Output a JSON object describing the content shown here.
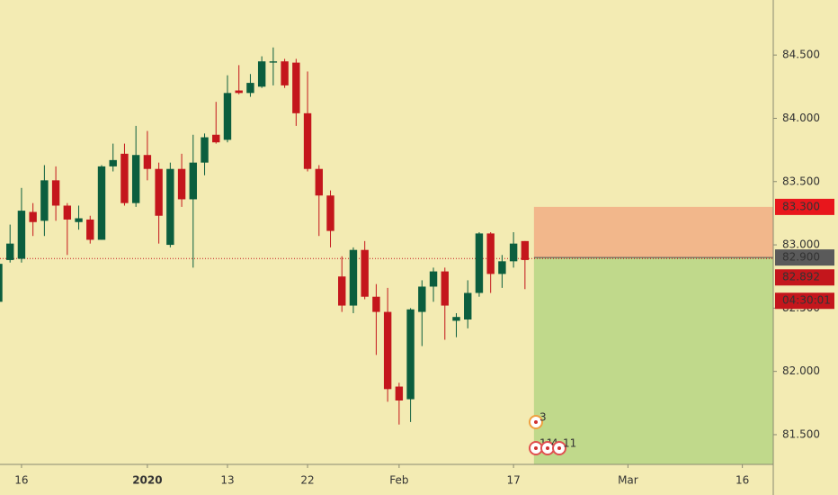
{
  "chart_data": {
    "type": "candlestick",
    "x": [
      0,
      1,
      2,
      3,
      4,
      5,
      6,
      7,
      8,
      9,
      10,
      11,
      12,
      13,
      14,
      15,
      16,
      17,
      18,
      19,
      20,
      21,
      22,
      23,
      24,
      25,
      26,
      27,
      28,
      29,
      30,
      31,
      32,
      33,
      34,
      35,
      36,
      37,
      38,
      39,
      40,
      41,
      42,
      43,
      44,
      45,
      46
    ],
    "open": [
      82.55,
      82.88,
      82.89,
      83.26,
      83.19,
      83.51,
      83.31,
      83.18,
      83.2,
      83.04,
      83.62,
      83.72,
      83.33,
      83.71,
      83.6,
      83.0,
      83.6,
      83.36,
      83.65,
      83.87,
      83.83,
      84.22,
      84.2,
      84.25,
      84.44,
      84.45,
      84.44,
      84.04,
      83.6,
      83.39,
      82.75,
      82.52,
      82.96,
      82.59,
      82.47,
      81.88,
      81.78,
      82.47,
      82.67,
      82.79,
      82.4,
      82.41,
      82.62,
      83.09,
      82.77,
      82.87,
      83.03
    ],
    "high": [
      82.9,
      83.16,
      83.45,
      83.33,
      83.63,
      83.62,
      83.33,
      83.31,
      83.23,
      83.63,
      83.8,
      83.8,
      83.94,
      83.9,
      83.65,
      83.65,
      83.72,
      83.87,
      83.88,
      84.13,
      84.34,
      84.42,
      84.35,
      84.49,
      84.56,
      84.47,
      84.47,
      84.37,
      83.63,
      83.43,
      82.91,
      82.98,
      83.03,
      82.69,
      82.66,
      81.91,
      82.5,
      82.72,
      82.82,
      82.82,
      82.46,
      82.72,
      83.1,
      83.1,
      82.92,
      83.1,
      83.03
    ],
    "low": [
      82.5,
      82.86,
      82.86,
      83.07,
      83.07,
      83.19,
      82.92,
      83.12,
      83.01,
      83.04,
      83.58,
      83.31,
      83.3,
      83.51,
      83.01,
      82.98,
      83.3,
      82.82,
      83.55,
      83.8,
      83.81,
      84.19,
      84.17,
      84.24,
      84.26,
      84.24,
      83.94,
      83.58,
      83.07,
      82.98,
      82.47,
      82.46,
      82.57,
      82.13,
      81.76,
      81.58,
      81.6,
      82.2,
      82.55,
      82.25,
      82.27,
      82.34,
      82.59,
      82.62,
      82.66,
      82.82,
      82.65
    ],
    "close": [
      82.85,
      83.01,
      83.27,
      83.18,
      83.51,
      83.31,
      83.2,
      83.21,
      83.04,
      83.62,
      83.67,
      83.33,
      83.71,
      83.6,
      83.23,
      83.6,
      83.36,
      83.65,
      83.85,
      83.81,
      84.2,
      84.2,
      84.28,
      84.45,
      84.45,
      84.26,
      84.04,
      83.6,
      83.39,
      83.11,
      82.52,
      82.96,
      82.59,
      82.47,
      81.86,
      81.77,
      82.49,
      82.67,
      82.79,
      82.52,
      82.43,
      82.62,
      83.09,
      82.77,
      82.87,
      83.01,
      82.88
    ],
    "up_color": "#0b5e3e",
    "down_color": "#c4161c",
    "xlim": [
      0.12,
      67.7
    ],
    "xticks": [
      {
        "value": 2,
        "label": "16"
      },
      {
        "value": 13,
        "label": "2020"
      },
      {
        "value": 20,
        "label": "13"
      },
      {
        "value": 27,
        "label": "22"
      },
      {
        "value": 35,
        "label": "Feb"
      },
      {
        "value": 45,
        "label": "17"
      },
      {
        "value": 55,
        "label": "Mar"
      },
      {
        "value": 65,
        "label": "16"
      }
    ],
    "ylim": [
      81.265,
      84.935
    ],
    "yticks": [
      {
        "value": 81.5,
        "label": "81.500"
      },
      {
        "value": 82,
        "label": "82.000"
      },
      {
        "value": 82.5,
        "label": "82.500"
      },
      {
        "value": 83,
        "label": "83.000"
      },
      {
        "value": 83.5,
        "label": "83.500"
      },
      {
        "value": 84,
        "label": "84.000"
      },
      {
        "value": 84.5,
        "label": "84.500"
      }
    ],
    "position": {
      "values": [
        83.3,
        82.9
      ],
      "value_labels": [
        "83.300",
        "82.900"
      ]
    },
    "last_price": {
      "value": 82.892,
      "label": "82.892"
    },
    "countdown": "04:30:01",
    "events": [
      "3",
      "11",
      "4",
      "11"
    ]
  }
}
